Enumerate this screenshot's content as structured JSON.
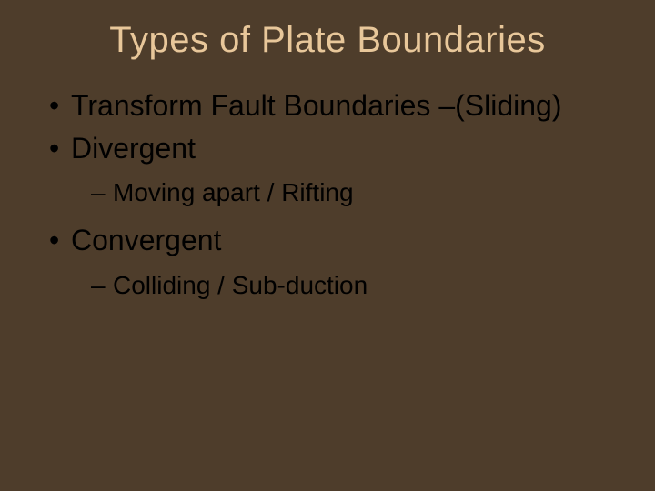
{
  "slide": {
    "background_color": "#4e3d2b",
    "title": {
      "text": "Types of Plate Boundaries",
      "color": "#e8c79a",
      "fontsize": 40
    },
    "body_color": "#000000",
    "body_fontsize_l1": 32,
    "body_fontsize_l2": 28,
    "items": [
      {
        "label": "Transform Fault Boundaries –(Sliding)",
        "children": []
      },
      {
        "label": "Divergent",
        "children": [
          {
            "label": "Moving apart / Rifting"
          }
        ]
      },
      {
        "label": "Convergent",
        "children": [
          {
            "label": "Colliding / Sub-duction"
          }
        ]
      }
    ]
  }
}
